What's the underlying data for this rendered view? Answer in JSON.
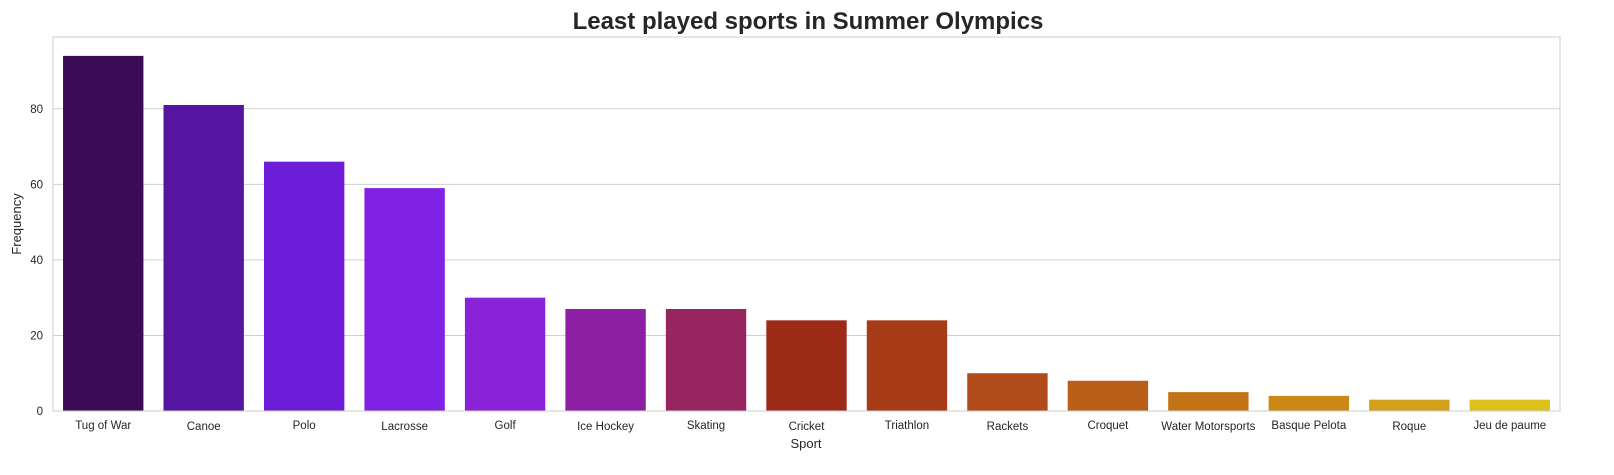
{
  "chart_data": {
    "type": "bar",
    "title": "Least played sports in Summer Olympics",
    "xlabel": "Sport",
    "ylabel": "Frequency",
    "categories": [
      "Tug of War",
      "Canoe",
      "Polo",
      "Lacrosse",
      "Golf",
      "Ice Hockey",
      "Skating",
      "Cricket",
      "Triathlon",
      "Rackets",
      "Croquet",
      "Water Motorsports",
      "Basque Pelota",
      "Roque",
      "Jeu de paume"
    ],
    "values": [
      94,
      81,
      66,
      59,
      30,
      27,
      27,
      24,
      24,
      10,
      8,
      5,
      4,
      3,
      3
    ],
    "colors": [
      "#3c0b55",
      "#5515a0",
      "#6c1dd8",
      "#8022e3",
      "#8a22d8",
      "#8c1fa3",
      "#962560",
      "#9c2c18",
      "#a73a17",
      "#b14c1a",
      "#b95f1a",
      "#c37316",
      "#cb8816",
      "#d3a01c",
      "#ddc11c"
    ],
    "ylim": [
      0,
      99
    ],
    "yticks": [
      0,
      20,
      40,
      60,
      80
    ],
    "grid": true,
    "legend": "none"
  }
}
